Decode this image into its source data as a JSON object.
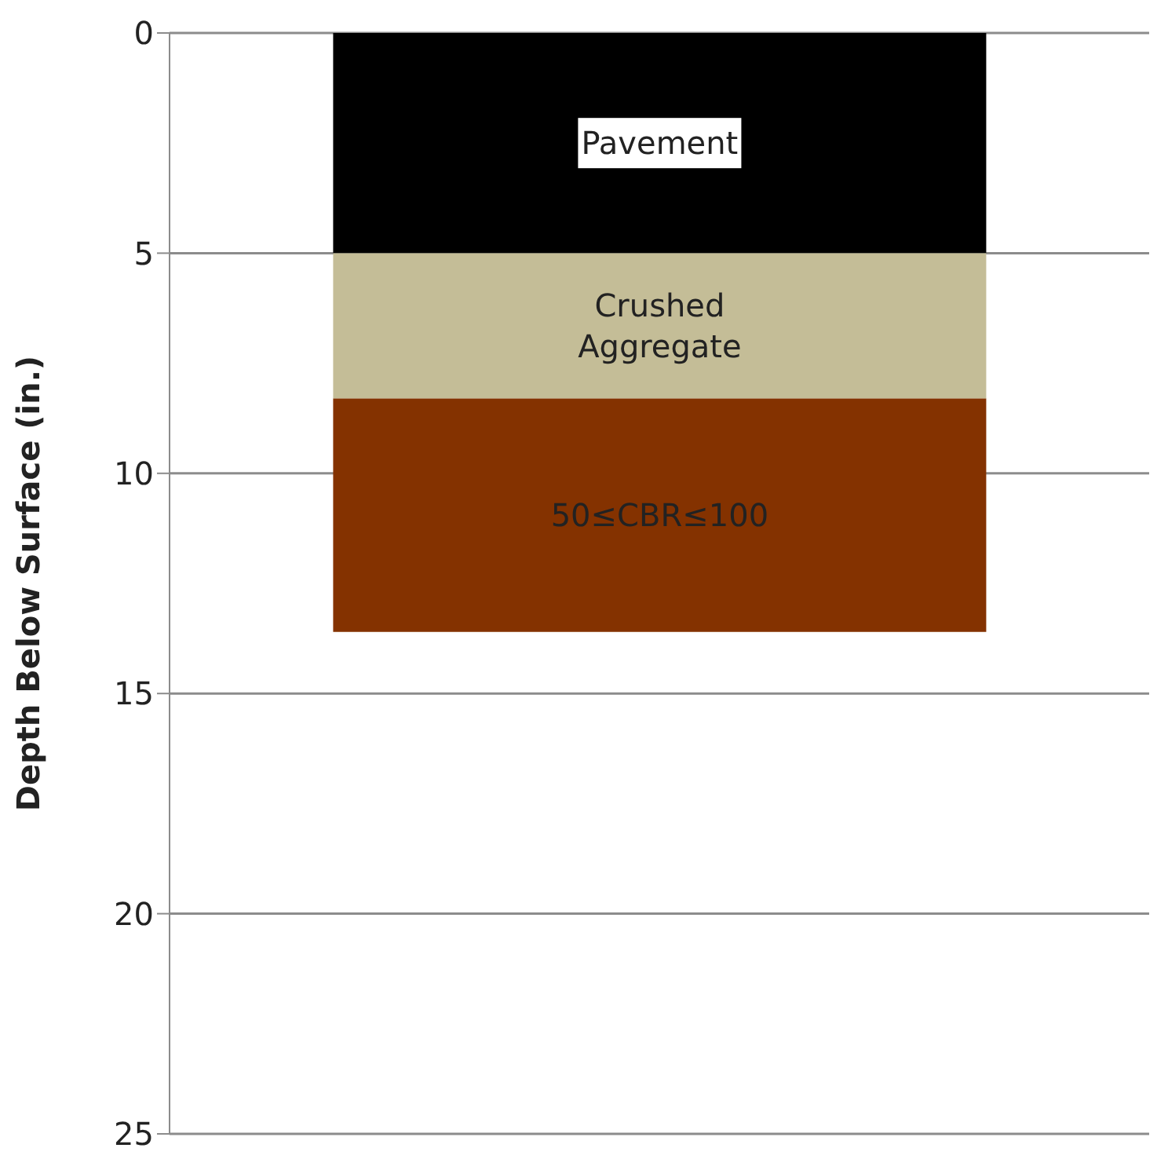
{
  "chart_data": {
    "type": "bar",
    "stacked": true,
    "ylabel": "Depth Below Surface (in.)",
    "categories": [
      null
    ],
    "series": [
      {
        "name": "Pavement",
        "color": "#000000",
        "values": [
          5
        ]
      },
      {
        "name": "Crushed Aggregate",
        "color": "#c4bd97",
        "values": [
          3.3
        ]
      },
      {
        "name": "50≤CBR≤100",
        "color": "#843200",
        "values": [
          5.3
        ]
      }
    ],
    "ylim": [
      25,
      0
    ],
    "yticks": [
      0,
      5,
      10,
      15,
      20,
      25
    ],
    "grid": "y",
    "legend": false
  }
}
